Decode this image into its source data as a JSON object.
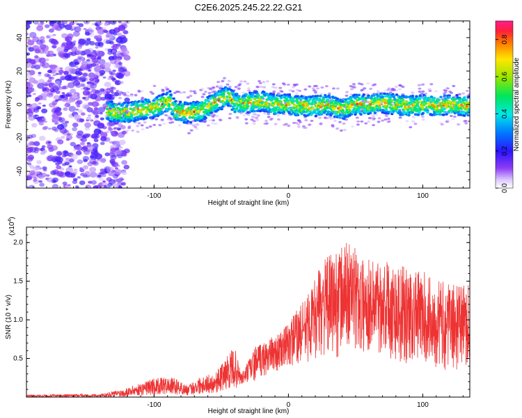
{
  "figure": {
    "title": "C2E6.2025.245.22.22.G21"
  },
  "chart_data": [
    {
      "type": "heatmap",
      "xlabel": "Height of straight line (km)",
      "ylabel": "Frequency (Hz)",
      "xlim": [
        -195,
        135
      ],
      "ylim": [
        -50,
        50
      ],
      "xticks": [
        -100,
        0,
        100
      ],
      "yticks": [
        -40,
        -20,
        0,
        20,
        40
      ],
      "signal_start_km": -135,
      "noise_region_km": [
        -195,
        -120
      ],
      "frequency_track": [
        {
          "x": -135,
          "y": -4
        },
        {
          "x": -120,
          "y": -5
        },
        {
          "x": -110,
          "y": -3
        },
        {
          "x": -100,
          "y": -2
        },
        {
          "x": -88,
          "y": 2
        },
        {
          "x": -84,
          "y": -4
        },
        {
          "x": -75,
          "y": -5
        },
        {
          "x": -65,
          "y": -4
        },
        {
          "x": -55,
          "y": 1
        },
        {
          "x": -45,
          "y": 5
        },
        {
          "x": -40,
          "y": 1
        },
        {
          "x": -30,
          "y": 1
        },
        {
          "x": -20,
          "y": 2
        },
        {
          "x": -10,
          "y": 0
        },
        {
          "x": 0,
          "y": 0
        },
        {
          "x": 10,
          "y": -1
        },
        {
          "x": 20,
          "y": -1
        },
        {
          "x": 30,
          "y": 0
        },
        {
          "x": 40,
          "y": -3
        },
        {
          "x": 50,
          "y": 0
        },
        {
          "x": 60,
          "y": 0
        },
        {
          "x": 70,
          "y": 1
        },
        {
          "x": 80,
          "y": 0
        },
        {
          "x": 90,
          "y": -1
        },
        {
          "x": 100,
          "y": 0
        },
        {
          "x": 110,
          "y": -1
        },
        {
          "x": 120,
          "y": 0
        },
        {
          "x": 135,
          "y": -1
        }
      ],
      "colorbar": {
        "label": "Normalized spectral amplitude",
        "range": [
          0.0,
          0.9
        ],
        "ticks": [
          "0.0",
          "0.2",
          "0.4",
          "0.6",
          "0.8"
        ]
      }
    },
    {
      "type": "line",
      "xlabel": "Height of straight line (km)",
      "ylabel": "SNR (10 * v/v)",
      "scale_note": "(x10",
      "scale_exp": "4",
      "scale_close": ")",
      "xlim": [
        -195,
        135
      ],
      "ylim": [
        0,
        2.2
      ],
      "xticks": [
        -100,
        0,
        100
      ],
      "yticks": [
        "0.5",
        "1.0",
        "1.5",
        "2.0"
      ],
      "color": "#ee3333",
      "envelope": [
        {
          "x": -195,
          "lo": 0.0,
          "hi": 0.03
        },
        {
          "x": -140,
          "lo": 0.0,
          "hi": 0.04
        },
        {
          "x": -125,
          "lo": 0.0,
          "hi": 0.1
        },
        {
          "x": -110,
          "lo": 0.02,
          "hi": 0.18
        },
        {
          "x": -100,
          "lo": 0.03,
          "hi": 0.25
        },
        {
          "x": -85,
          "lo": 0.03,
          "hi": 0.25
        },
        {
          "x": -75,
          "lo": 0.02,
          "hi": 0.15
        },
        {
          "x": -65,
          "lo": 0.04,
          "hi": 0.28
        },
        {
          "x": -55,
          "lo": 0.05,
          "hi": 0.3
        },
        {
          "x": -45,
          "lo": 0.1,
          "hi": 0.55
        },
        {
          "x": -40,
          "lo": 0.1,
          "hi": 0.65
        },
        {
          "x": -35,
          "lo": 0.15,
          "hi": 0.3
        },
        {
          "x": -25,
          "lo": 0.2,
          "hi": 0.65
        },
        {
          "x": -15,
          "lo": 0.3,
          "hi": 0.75
        },
        {
          "x": -5,
          "lo": 0.35,
          "hi": 0.85
        },
        {
          "x": 5,
          "lo": 0.4,
          "hi": 1.1
        },
        {
          "x": 15,
          "lo": 0.45,
          "hi": 1.35
        },
        {
          "x": 25,
          "lo": 0.55,
          "hi": 1.75
        },
        {
          "x": 35,
          "lo": 0.5,
          "hi": 1.9
        },
        {
          "x": 45,
          "lo": 0.6,
          "hi": 2.05
        },
        {
          "x": 55,
          "lo": 0.55,
          "hi": 1.8
        },
        {
          "x": 65,
          "lo": 0.6,
          "hi": 1.8
        },
        {
          "x": 75,
          "lo": 0.5,
          "hi": 1.8
        },
        {
          "x": 85,
          "lo": 0.4,
          "hi": 1.7
        },
        {
          "x": 95,
          "lo": 0.45,
          "hi": 1.65
        },
        {
          "x": 105,
          "lo": 0.4,
          "hi": 1.6
        },
        {
          "x": 115,
          "lo": 0.35,
          "hi": 1.5
        },
        {
          "x": 125,
          "lo": 0.35,
          "hi": 1.45
        },
        {
          "x": 135,
          "lo": 0.4,
          "hi": 1.5
        }
      ]
    }
  ]
}
